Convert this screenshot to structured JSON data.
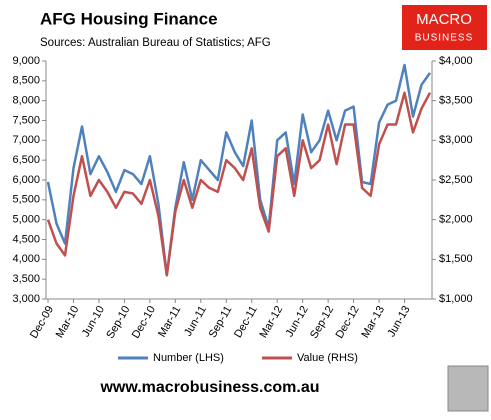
{
  "chart_data": {
    "type": "line",
    "title": "AFG Housing Finance",
    "subtitle": "Sources: Australian Bureau of Statistics; AFG",
    "categories": [
      "Dec-09",
      null,
      null,
      "Mar-10",
      null,
      null,
      "Jun-10",
      null,
      null,
      "Sep-10",
      null,
      null,
      "Dec-10",
      null,
      null,
      "Mar-11",
      null,
      null,
      "Jun-11",
      null,
      null,
      "Sep-11",
      null,
      null,
      "Dec-11",
      null,
      null,
      "Mar-12",
      null,
      null,
      "Jun-12",
      null,
      null,
      "Sep-12",
      null,
      null,
      "Dec-12",
      null,
      null,
      "Mar-13",
      null,
      null,
      "Jun-13",
      null,
      null,
      null
    ],
    "series": [
      {
        "name": "Number (LHS)",
        "color": "#4f81bd",
        "axis": "y",
        "values": [
          5950,
          4900,
          4400,
          6300,
          7350,
          6150,
          6600,
          6200,
          5700,
          6250,
          6150,
          5900,
          6600,
          5400,
          3600,
          5300,
          6450,
          5500,
          6500,
          6250,
          6000,
          7200,
          6700,
          6350,
          7500,
          5500,
          4800,
          7000,
          7200,
          5900,
          7650,
          6700,
          7000,
          7750,
          7000,
          7750,
          7850,
          5950,
          5900,
          7450,
          7900,
          8000,
          8900,
          7600,
          8400,
          8700
        ]
      },
      {
        "name": "Value (RHS)",
        "color": "#c0504d",
        "axis": "y2",
        "values": [
          2000,
          1700,
          1550,
          2300,
          2800,
          2300,
          2500,
          2350,
          2150,
          2350,
          2330,
          2200,
          2500,
          2050,
          1300,
          2100,
          2500,
          2150,
          2500,
          2400,
          2350,
          2750,
          2650,
          2500,
          2900,
          2150,
          1850,
          2800,
          2900,
          2300,
          3000,
          2650,
          2750,
          3200,
          2700,
          3200,
          3200,
          2400,
          2300,
          2950,
          3200,
          3200,
          3600,
          3100,
          3400,
          3600
        ]
      }
    ],
    "ylim": [
      3000,
      9000
    ],
    "yticks": [
      {
        "value": 3000,
        "label": "3,000"
      },
      {
        "value": 3500,
        "label": "3,500"
      },
      {
        "value": 4000,
        "label": "4,000"
      },
      {
        "value": 4500,
        "label": "4,500"
      },
      {
        "value": 5000,
        "label": "5,000"
      },
      {
        "value": 5500,
        "label": "5,500"
      },
      {
        "value": 6000,
        "label": "6,000"
      },
      {
        "value": 6500,
        "label": "6,500"
      },
      {
        "value": 7000,
        "label": "7,000"
      },
      {
        "value": 7500,
        "label": "7,500"
      },
      {
        "value": 8000,
        "label": "8,000"
      },
      {
        "value": 8500,
        "label": "8,500"
      },
      {
        "value": 9000,
        "label": "9,000"
      }
    ],
    "y2lim": [
      1000,
      4000
    ],
    "y2ticks": [
      {
        "value": 1000,
        "label": "$1,000"
      },
      {
        "value": 1500,
        "label": "$1,500"
      },
      {
        "value": 2000,
        "label": "$2,000"
      },
      {
        "value": 2500,
        "label": "$2,500"
      },
      {
        "value": 3000,
        "label": "$3,000"
      },
      {
        "value": 3500,
        "label": "$3,500"
      },
      {
        "value": 4000,
        "label": "$4,000"
      }
    ],
    "grid": false,
    "legend": "bottom"
  },
  "logo": [
    "MACRO",
    "BUSINESS"
  ],
  "footer": "www.macrobusiness.com.au"
}
